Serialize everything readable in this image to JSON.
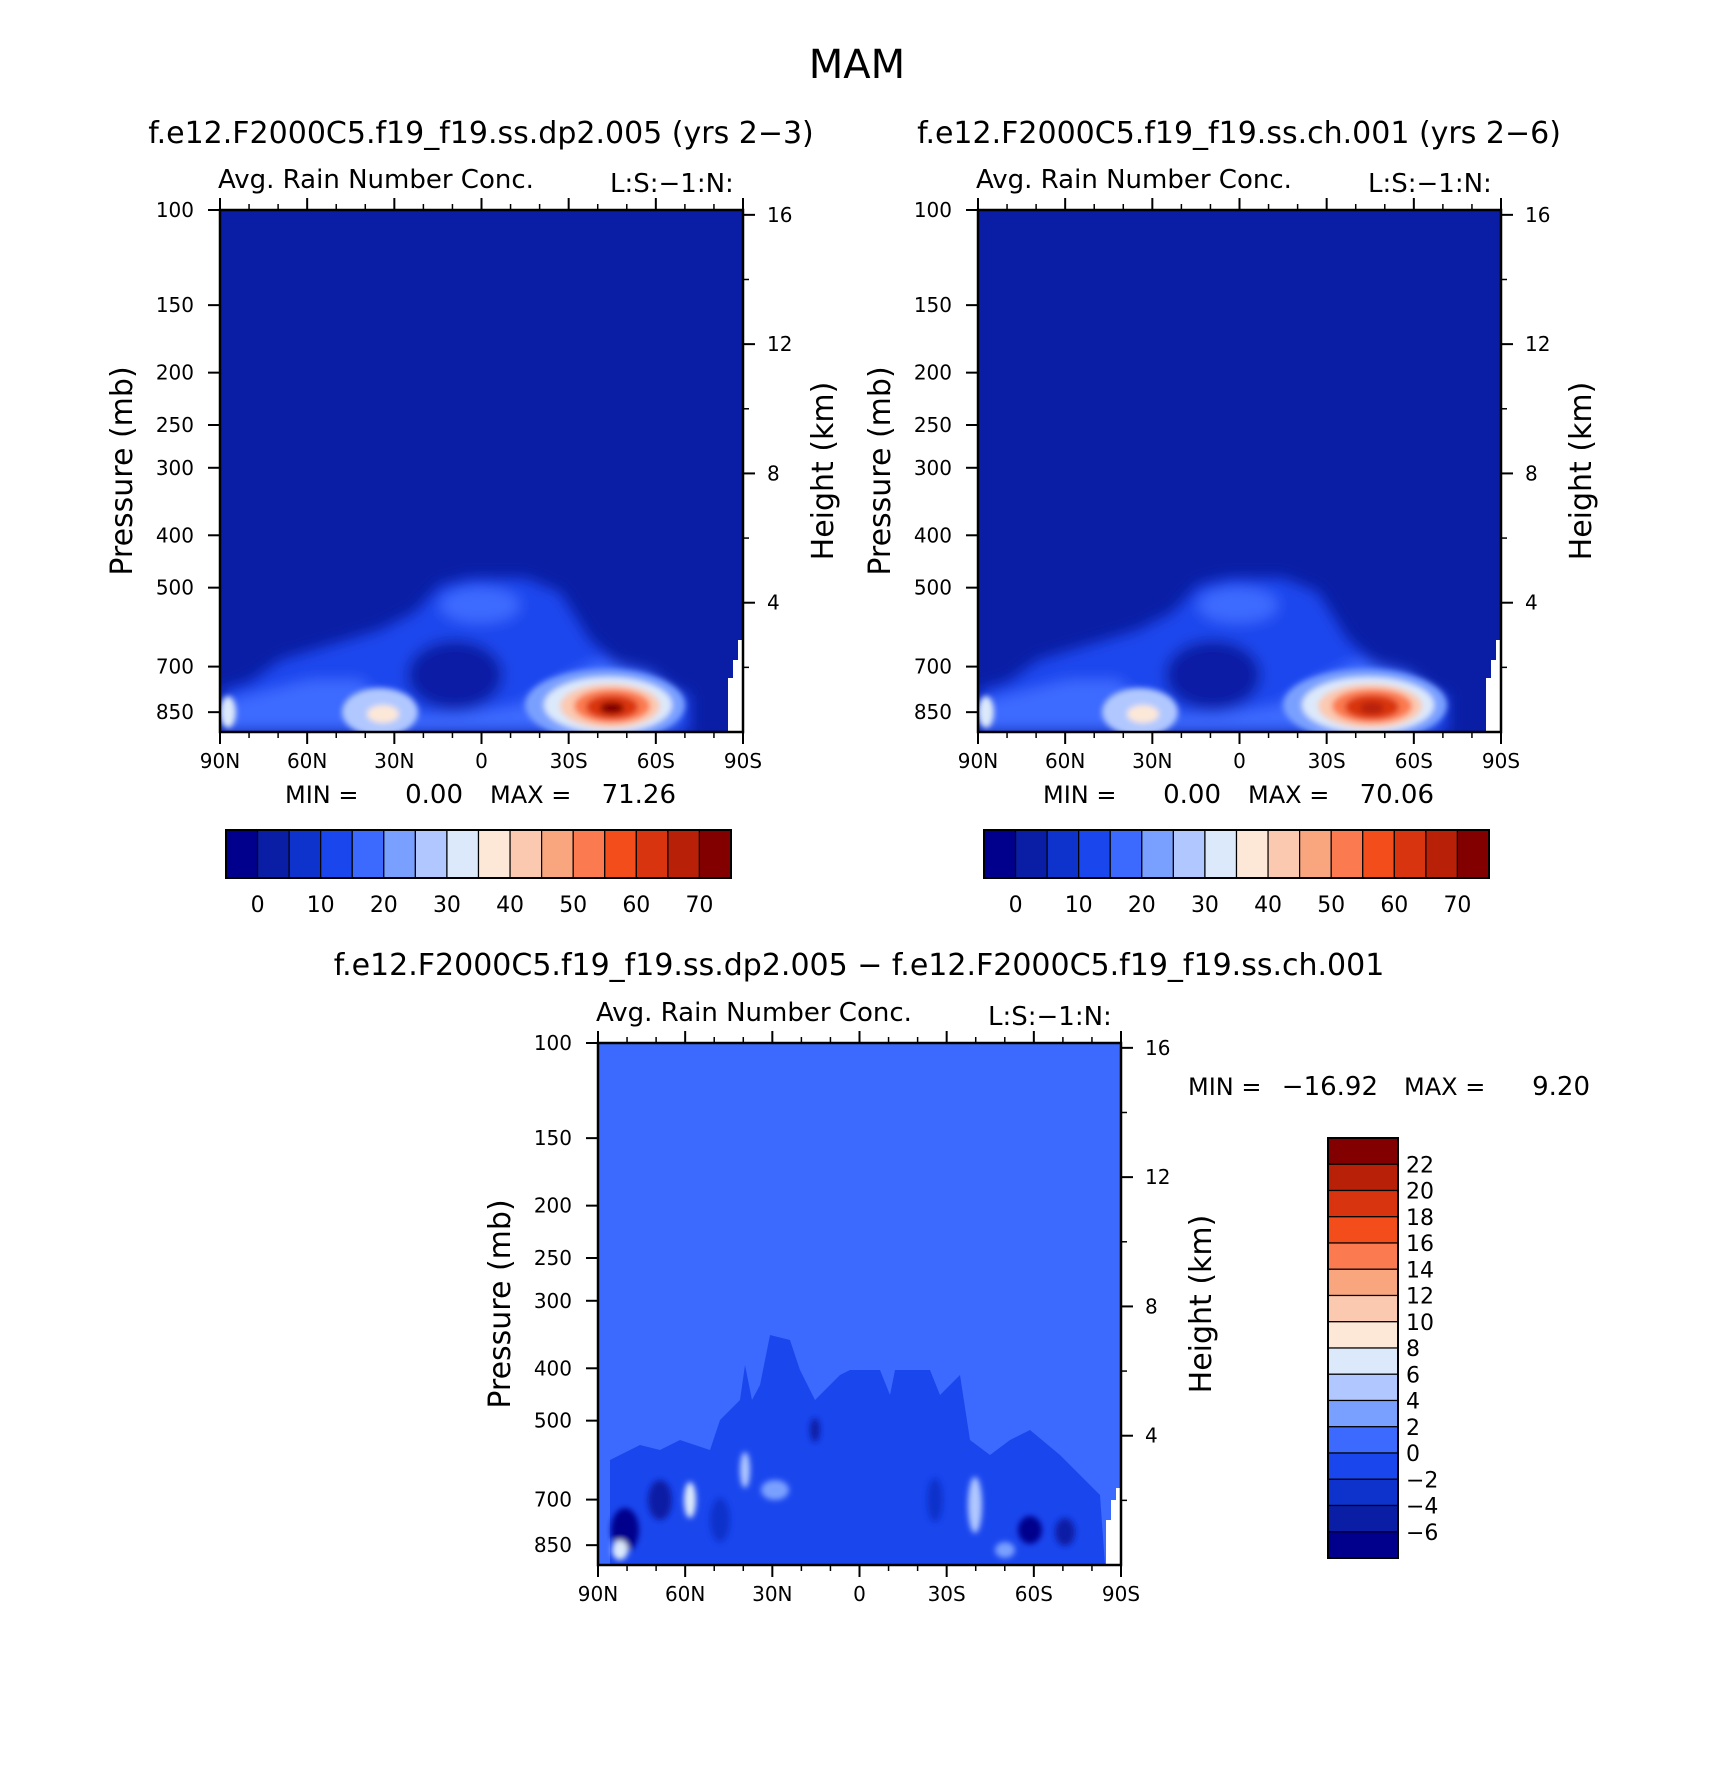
{
  "figure": {
    "season": "MAM",
    "panel_a_title": "f.e12.F2000C5.f19_f19.ss.dp2.005 (yrs 2−3)",
    "panel_b_title": "f.e12.F2000C5.f19_f19.ss.ch.001 (yrs 2−6)",
    "diff_title": "f.e12.F2000C5.f19_f19.ss.dp2.005 − f.e12.F2000C5.f19_f19.ss.ch.001"
  },
  "colors": {
    "abs_scale": [
      "#00008c",
      "#0a1ea5",
      "#0d33cc",
      "#1a46ee",
      "#3c6aff",
      "#7aa0ff",
      "#b0c8ff",
      "#dce9fb",
      "#fde8d8",
      "#fbc9b0",
      "#f9a67f",
      "#fb7a50",
      "#f44d1c",
      "#d93410",
      "#b82008",
      "#830000"
    ],
    "diff_scale": [
      "#00008c",
      "#0a1ea5",
      "#0d33cc",
      "#1a46ee",
      "#3c6aff",
      "#7aa0ff",
      "#b0c8ff",
      "#dce9fb",
      "#fde8d8",
      "#fbc9b0",
      "#f9a67f",
      "#fb7a50",
      "#f44d1c",
      "#d93410",
      "#b82008",
      "#830000"
    ]
  },
  "chart_data": [
    {
      "type": "heatmap",
      "title": "Avg. Rain Number Conc.",
      "corner_label": "L:S:−1:N:",
      "xlabel": "",
      "ylabel": "Pressure (mb)",
      "ylabel_right": "Height (km)",
      "x_ticks": [
        "90N",
        "60N",
        "30N",
        "0",
        "30S",
        "60S",
        "90S"
      ],
      "xlim": [
        90,
        -90
      ],
      "y_ticks": [
        "100",
        "150",
        "200",
        "250",
        "300",
        "400",
        "500",
        "700",
        "850"
      ],
      "y_ticks_right": [
        "16",
        "12",
        "8",
        "4"
      ],
      "ylim": [
        1000,
        100
      ],
      "min_label": "MIN =",
      "min_value": "0.00",
      "max_label": "MAX =",
      "max_value": "71.26",
      "colorbar_levels": [
        0,
        5,
        10,
        15,
        20,
        25,
        30,
        35,
        40,
        45,
        50,
        55,
        60,
        65,
        70
      ],
      "colorbar_tick_labels": [
        "0",
        "10",
        "20",
        "30",
        "40",
        "50",
        "60",
        "70"
      ],
      "hotspots": [
        {
          "lat": 30,
          "p": 850,
          "value": 35
        },
        {
          "lat": -45,
          "p": 860,
          "value": 71.26
        },
        {
          "lat": 87,
          "p": 860,
          "value": 32
        }
      ]
    },
    {
      "type": "heatmap",
      "title": "Avg. Rain Number Conc.",
      "corner_label": "L:S:−1:N:",
      "xlabel": "",
      "ylabel": "Pressure (mb)",
      "ylabel_right": "Height (km)",
      "x_ticks": [
        "90N",
        "60N",
        "30N",
        "0",
        "30S",
        "60S",
        "90S"
      ],
      "xlim": [
        90,
        -90
      ],
      "y_ticks": [
        "100",
        "150",
        "200",
        "250",
        "300",
        "400",
        "500",
        "700",
        "850"
      ],
      "y_ticks_right": [
        "16",
        "12",
        "8",
        "4"
      ],
      "ylim": [
        1000,
        100
      ],
      "min_label": "MIN =",
      "min_value": "0.00",
      "max_label": "MAX =",
      "max_value": "70.06",
      "colorbar_levels": [
        0,
        5,
        10,
        15,
        20,
        25,
        30,
        35,
        40,
        45,
        50,
        55,
        60,
        65,
        70
      ],
      "colorbar_tick_labels": [
        "0",
        "10",
        "20",
        "30",
        "40",
        "50",
        "60",
        "70"
      ],
      "hotspots": [
        {
          "lat": 32,
          "p": 850,
          "value": 33
        },
        {
          "lat": -45,
          "p": 860,
          "value": 70.06
        },
        {
          "lat": 87,
          "p": 860,
          "value": 30
        }
      ]
    },
    {
      "type": "heatmap",
      "title": "Avg. Rain Number Conc.",
      "corner_label": "L:S:−1:N:",
      "xlabel": "",
      "ylabel": "Pressure (mb)",
      "ylabel_right": "Height (km)",
      "x_ticks": [
        "90N",
        "60N",
        "30N",
        "0",
        "30S",
        "60S",
        "90S"
      ],
      "xlim": [
        90,
        -90
      ],
      "y_ticks": [
        "100",
        "150",
        "200",
        "250",
        "300",
        "400",
        "500",
        "700",
        "850"
      ],
      "y_ticks_right": [
        "16",
        "12",
        "8",
        "4"
      ],
      "ylim": [
        1000,
        100
      ],
      "min_label": "MIN =",
      "min_value": "−16.92",
      "max_label": "MAX =",
      "max_value": "9.20",
      "colorbar_levels": [
        -8,
        -6,
        -4,
        -2,
        0,
        2,
        4,
        6,
        8,
        10,
        12,
        14,
        16,
        18,
        20,
        22
      ],
      "colorbar_tick_labels": [
        "22",
        "20",
        "18",
        "16",
        "14",
        "12",
        "10",
        "8",
        "6",
        "4",
        "2",
        "0",
        "−2",
        "−4",
        "−6"
      ]
    }
  ]
}
